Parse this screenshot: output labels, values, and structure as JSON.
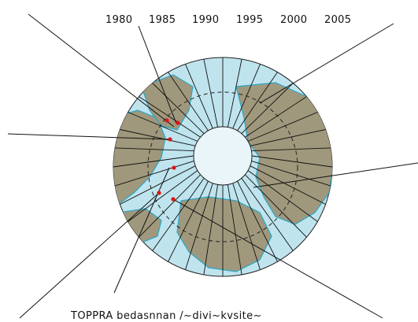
{
  "map": {
    "projection": "north-polar-stereographic",
    "year_labels": [
      "1980",
      "1985",
      "1990",
      "1995",
      "2000",
      "2005"
    ],
    "caption": "TOPPRA bedasnnan /~divi~kvsite~",
    "colors": {
      "ocean": "#bfe4ee",
      "land": "#a0987c",
      "coast": "#2aa6c8",
      "grid": "#111111",
      "marker": "#e01414",
      "pole_ice": "#eaf5f9"
    },
    "markers_count_visible": 6
  }
}
